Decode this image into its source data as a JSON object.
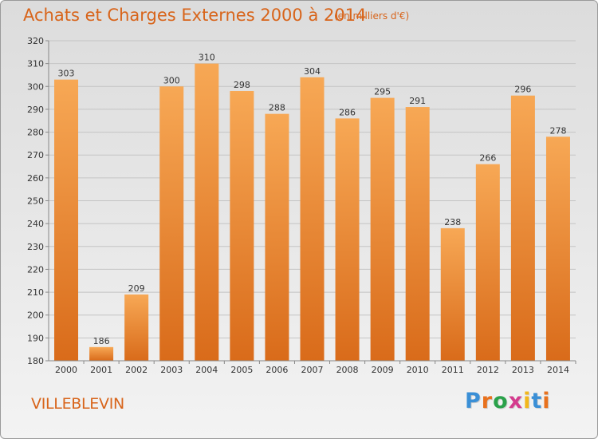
{
  "chart_data": {
    "type": "bar",
    "title": "Achats et Charges Externes 2000 à 2014",
    "subtitle": "(en milliers d'€)",
    "categories": [
      "2000",
      "2001",
      "2002",
      "2003",
      "2004",
      "2005",
      "2006",
      "2007",
      "2008",
      "2009",
      "2010",
      "2011",
      "2012",
      "2013",
      "2014"
    ],
    "values": [
      303,
      186,
      209,
      300,
      310,
      298,
      288,
      304,
      286,
      295,
      291,
      238,
      266,
      296,
      278
    ],
    "ylim": [
      180,
      320
    ],
    "yticks": [
      180,
      190,
      200,
      210,
      220,
      230,
      240,
      250,
      260,
      270,
      280,
      290,
      300,
      310,
      320
    ],
    "grid": true,
    "legend": "none",
    "bar_color_top": "#f7a855",
    "bar_color_bottom": "#d96b1a"
  },
  "footer": {
    "location": "VILLEBLEVIN",
    "logo_text": "Proxiti",
    "logo_colors": [
      "#3a8fd6",
      "#e8711d",
      "#2aa14a",
      "#d43c8e",
      "#f2b71b",
      "#3a8fd6",
      "#e8711d"
    ]
  }
}
